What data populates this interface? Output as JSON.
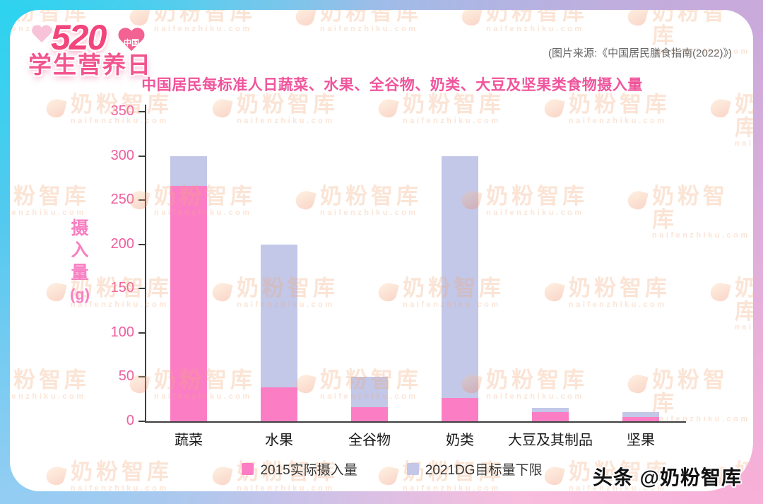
{
  "header": {
    "badge": {
      "number": "520",
      "country_label": "中国",
      "title": "学生营养日"
    },
    "source_note": "(图片来源:《中国居民膳食指南(2022)》)"
  },
  "watermark": {
    "brand": "奶粉智库",
    "url": "naifenzhiku.com"
  },
  "footer": {
    "credit": "头条 @奶粉智库"
  },
  "chart_data": {
    "type": "bar",
    "variant": "stacked",
    "title": "中国居民每标准人日蔬菜、水果、全谷物、奶类、大豆及坚果类食物摄入量",
    "ylabel": "摄入量(g)",
    "ylim": [
      0,
      350
    ],
    "ytick_step": 50,
    "grid": false,
    "legend_position": "bottom",
    "categories": [
      "蔬菜",
      "水果",
      "全谷物",
      "奶类",
      "大豆及其制品",
      "坚果"
    ],
    "series": [
      {
        "name": "2015实际摄入量",
        "color": "#FB7EC5",
        "values": [
          266,
          38,
          16,
          26,
          10,
          5
        ]
      },
      {
        "name": "2021DG目标量下限",
        "color": "#C3C7E8",
        "values": [
          300,
          200,
          50,
          300,
          15,
          10
        ],
        "note": "values are stack totals: lavender segment drawn from 2015 actual up to the 2021 DG target lower limit"
      }
    ]
  },
  "colors": {
    "frame_top_left": "#2ed3ef",
    "frame_top_right": "#c9aadb",
    "frame_bottom_left": "#93cdf3",
    "frame_bottom_right": "#f7b0d8",
    "card_background": "#ffffff",
    "title_text": "#f0559c",
    "axis_tick_text": "#ee5f9e",
    "y_axis_label_text": "#f87fc2",
    "axis_line": "#3f3f3f",
    "series_actual": "#FB7EC5",
    "series_target": "#C3C7E8",
    "watermark_text": "#f3a878",
    "source_text": "#666666"
  }
}
